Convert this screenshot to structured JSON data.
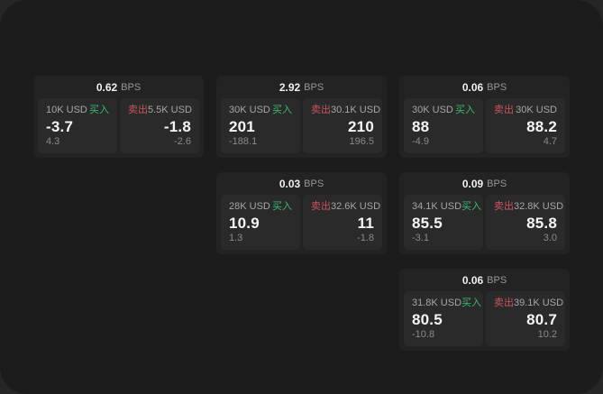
{
  "theme": {
    "outer_bg": "#262626",
    "surface_bg": "#1c1c1c",
    "card_bg": "#232323",
    "panel_bg": "#2a2a2a",
    "text_primary": "#f5f5f5",
    "text_secondary": "#a6a6a6",
    "text_muted": "#8a8a8a",
    "buy_color": "#3aba72",
    "sell_color": "#cd5260"
  },
  "labels": {
    "bps": "BPS",
    "buy": "买入",
    "sell": "卖出"
  },
  "cards": [
    {
      "bps": "0.62",
      "buy": {
        "size": "10K USD",
        "price": "-3.7",
        "delta": "4.3"
      },
      "sell": {
        "size": "5.5K USD",
        "price": "-1.8",
        "delta": "-2.6"
      }
    },
    {
      "bps": "2.92",
      "buy": {
        "size": "30K USD",
        "price": "201",
        "delta": "-188.1"
      },
      "sell": {
        "size": "30.1K USD",
        "price": "210",
        "delta": "196.5"
      }
    },
    {
      "bps": "0.06",
      "buy": {
        "size": "30K USD",
        "price": "88",
        "delta": "-4.9"
      },
      "sell": {
        "size": "30K USD",
        "price": "88.2",
        "delta": "4.7"
      }
    },
    {
      "bps": "0.03",
      "buy": {
        "size": "28K USD",
        "price": "10.9",
        "delta": "1.3"
      },
      "sell": {
        "size": "32.6K USD",
        "price": "11",
        "delta": "-1.8"
      }
    },
    {
      "bps": "0.09",
      "buy": {
        "size": "34.1K USD",
        "price": "85.5",
        "delta": "-3.1"
      },
      "sell": {
        "size": "32.8K USD",
        "price": "85.8",
        "delta": "3.0"
      }
    },
    {
      "bps": "0.06",
      "buy": {
        "size": "31.8K USD",
        "price": "80.5",
        "delta": "-10.8"
      },
      "sell": {
        "size": "39.1K USD",
        "price": "80.7",
        "delta": "10.2"
      }
    }
  ]
}
